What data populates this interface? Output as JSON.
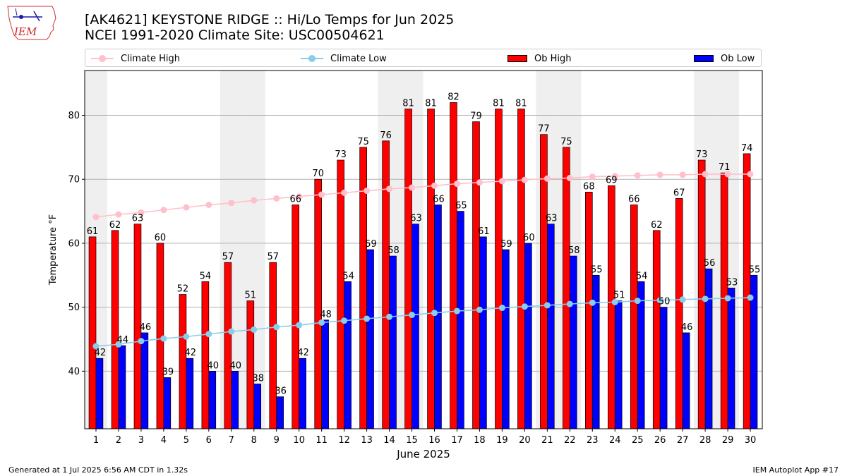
{
  "header": {
    "title": "[AK4621] KEYSTONE RIDGE :: Hi/Lo Temps for Jun 2025",
    "subtitle": "NCEI 1991-2020 Climate Site: USC00504621",
    "logo_text": "IEM"
  },
  "legend": {
    "climate_high": "Climate High",
    "climate_low": "Climate Low",
    "ob_high": "Ob High",
    "ob_low": "Ob Low"
  },
  "colors": {
    "ob_high": "#ff0000",
    "ob_low": "#0000ff",
    "climate_high": "#ffc0cb",
    "climate_low": "#87ceeb",
    "weekend_shade": "#efefef"
  },
  "footer": {
    "left": "Generated at 1 Jul 2025 6:56 AM CDT in 1.32s",
    "right": "IEM Autoplot App #17"
  },
  "chart_data": {
    "type": "bar",
    "xlabel": "June 2025",
    "ylabel": "Temperature °F",
    "ylim": [
      31,
      87
    ],
    "yticks": [
      40,
      50,
      60,
      70,
      80
    ],
    "grid": true,
    "legend_position": "top",
    "categories": [
      "1",
      "2",
      "3",
      "4",
      "5",
      "6",
      "7",
      "8",
      "9",
      "10",
      "11",
      "12",
      "13",
      "14",
      "15",
      "16",
      "17",
      "18",
      "19",
      "20",
      "21",
      "22",
      "23",
      "24",
      "25",
      "26",
      "27",
      "28",
      "29",
      "30"
    ],
    "shaded_days": [
      "1",
      "7",
      "8",
      "14",
      "15",
      "21",
      "22",
      "28",
      "29"
    ],
    "series": [
      {
        "name": "Ob High",
        "kind": "bar",
        "values": [
          61,
          62,
          63,
          60,
          52,
          54,
          57,
          51,
          57,
          66,
          70,
          73,
          75,
          76,
          81,
          81,
          82,
          79,
          81,
          81,
          77,
          75,
          68,
          69,
          66,
          62,
          67,
          73,
          71,
          74
        ]
      },
      {
        "name": "Ob Low",
        "kind": "bar",
        "values": [
          42,
          44,
          46,
          39,
          42,
          40,
          40,
          38,
          36,
          42,
          48,
          54,
          59,
          58,
          63,
          66,
          65,
          61,
          59,
          60,
          63,
          58,
          55,
          51,
          54,
          50,
          46,
          56,
          53,
          55
        ]
      },
      {
        "name": "Climate High",
        "kind": "line",
        "values": [
          64.1,
          64.5,
          64.8,
          65.2,
          65.6,
          66.0,
          66.3,
          66.7,
          67.0,
          67.3,
          67.6,
          67.9,
          68.2,
          68.5,
          68.7,
          69.0,
          69.3,
          69.5,
          69.7,
          69.9,
          70.1,
          70.2,
          70.4,
          70.5,
          70.6,
          70.7,
          70.7,
          70.8,
          70.8,
          70.8
        ]
      },
      {
        "name": "Climate Low",
        "kind": "line",
        "values": [
          43.9,
          44.2,
          44.7,
          45.1,
          45.4,
          45.8,
          46.2,
          46.5,
          46.9,
          47.2,
          47.6,
          47.9,
          48.2,
          48.5,
          48.8,
          49.1,
          49.4,
          49.6,
          49.9,
          50.1,
          50.3,
          50.5,
          50.7,
          50.8,
          51.0,
          51.1,
          51.2,
          51.3,
          51.4,
          51.5
        ]
      }
    ]
  }
}
